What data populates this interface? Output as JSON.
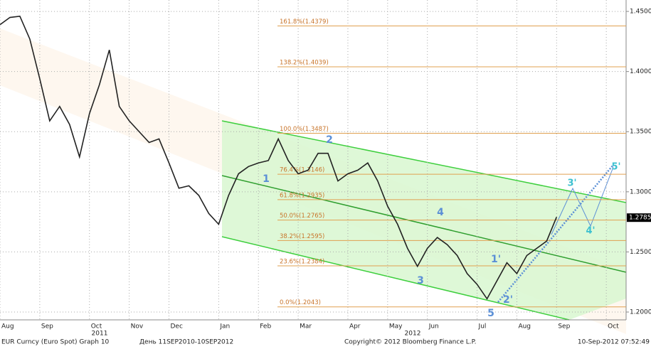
{
  "chart_data": {
    "type": "line",
    "categories": [
      "Aug",
      null,
      null,
      null,
      "Sep",
      null,
      null,
      null,
      null,
      "Oct",
      null,
      null,
      null,
      "Nov",
      null,
      null,
      null,
      "Dec",
      null,
      null,
      null,
      null,
      "Jan",
      null,
      null,
      null,
      "Feb",
      null,
      null,
      null,
      "Mar",
      null,
      null,
      null,
      null,
      "Apr",
      null,
      null,
      null,
      "May",
      null,
      null,
      null,
      "Jun",
      null,
      null,
      null,
      null,
      "Jul",
      null,
      null,
      null,
      "Aug",
      null,
      null,
      null,
      "Sep",
      null,
      null,
      null,
      null,
      "Oct",
      null
    ],
    "year_labels": [
      "2011",
      "2012"
    ],
    "series": [
      {
        "name": "EUR Curncy (Euro Spot)",
        "color": "#222222",
        "values": [
          1.439,
          1.445,
          1.446,
          1.427,
          1.394,
          1.359,
          1.371,
          1.356,
          1.329,
          1.365,
          1.389,
          1.418,
          1.371,
          1.359,
          1.35,
          1.341,
          1.344,
          1.324,
          1.303,
          1.305,
          1.297,
          1.282,
          1.273,
          1.297,
          1.315,
          1.321,
          1.324,
          1.326,
          1.344,
          1.326,
          1.315,
          1.318,
          1.332,
          1.332,
          1.309,
          1.315,
          1.318,
          1.324,
          1.309,
          1.288,
          1.273,
          1.253,
          1.238,
          1.253,
          1.262,
          1.256,
          1.247,
          1.232,
          1.223,
          1.211,
          1.226,
          1.241,
          1.232,
          1.247,
          1.253,
          1.259,
          1.279,
          null,
          null,
          null,
          null,
          null,
          null
        ]
      }
    ],
    "ylim": [
      1.1935,
      1.4595
    ],
    "yticks": [
      {
        "value": 1.2,
        "label": "1.2000"
      },
      {
        "value": 1.25,
        "label": "1.2500"
      },
      {
        "value": 1.3,
        "label": "1.3000"
      },
      {
        "value": 1.35,
        "label": "1.3500"
      },
      {
        "value": 1.4,
        "label": "1.4000"
      },
      {
        "value": 1.45,
        "label": "1.4500"
      }
    ],
    "last_price": {
      "value": 1.2785,
      "label": "1.2785"
    },
    "fib_levels": [
      {
        "value": 1.4379,
        "label": "161.8%(1.4379)"
      },
      {
        "value": 1.4039,
        "label": "138.2%(1.4039)"
      },
      {
        "value": 1.3487,
        "label": "100.0%(1.3487)"
      },
      {
        "value": 1.3146,
        "label": "76.4%(1.3146)"
      },
      {
        "value": 1.2935,
        "label": "61.8%(1.2935)"
      },
      {
        "value": 1.2765,
        "label": "50.0%(1.2765)"
      },
      {
        "value": 1.2595,
        "label": "38.2%(1.2595)"
      },
      {
        "value": 1.2384,
        "label": "23.6%(1.2384)"
      },
      {
        "value": 1.2043,
        "label": "0.0%(1.2043)"
      }
    ],
    "waves": [
      "1",
      "2",
      "3",
      "4",
      "5",
      "1'",
      "2'",
      "3'",
      "4'",
      "5'"
    ],
    "grid": true
  },
  "footer": {
    "security": "EUR Curncy (Euro Spot) Graph 10",
    "range": "День 11SEP2010-10SEP2012",
    "copyright": "Copyright© 2012 Bloomberg Finance L.P.",
    "timestamp": "10-Sep-2012 07:52:49"
  }
}
